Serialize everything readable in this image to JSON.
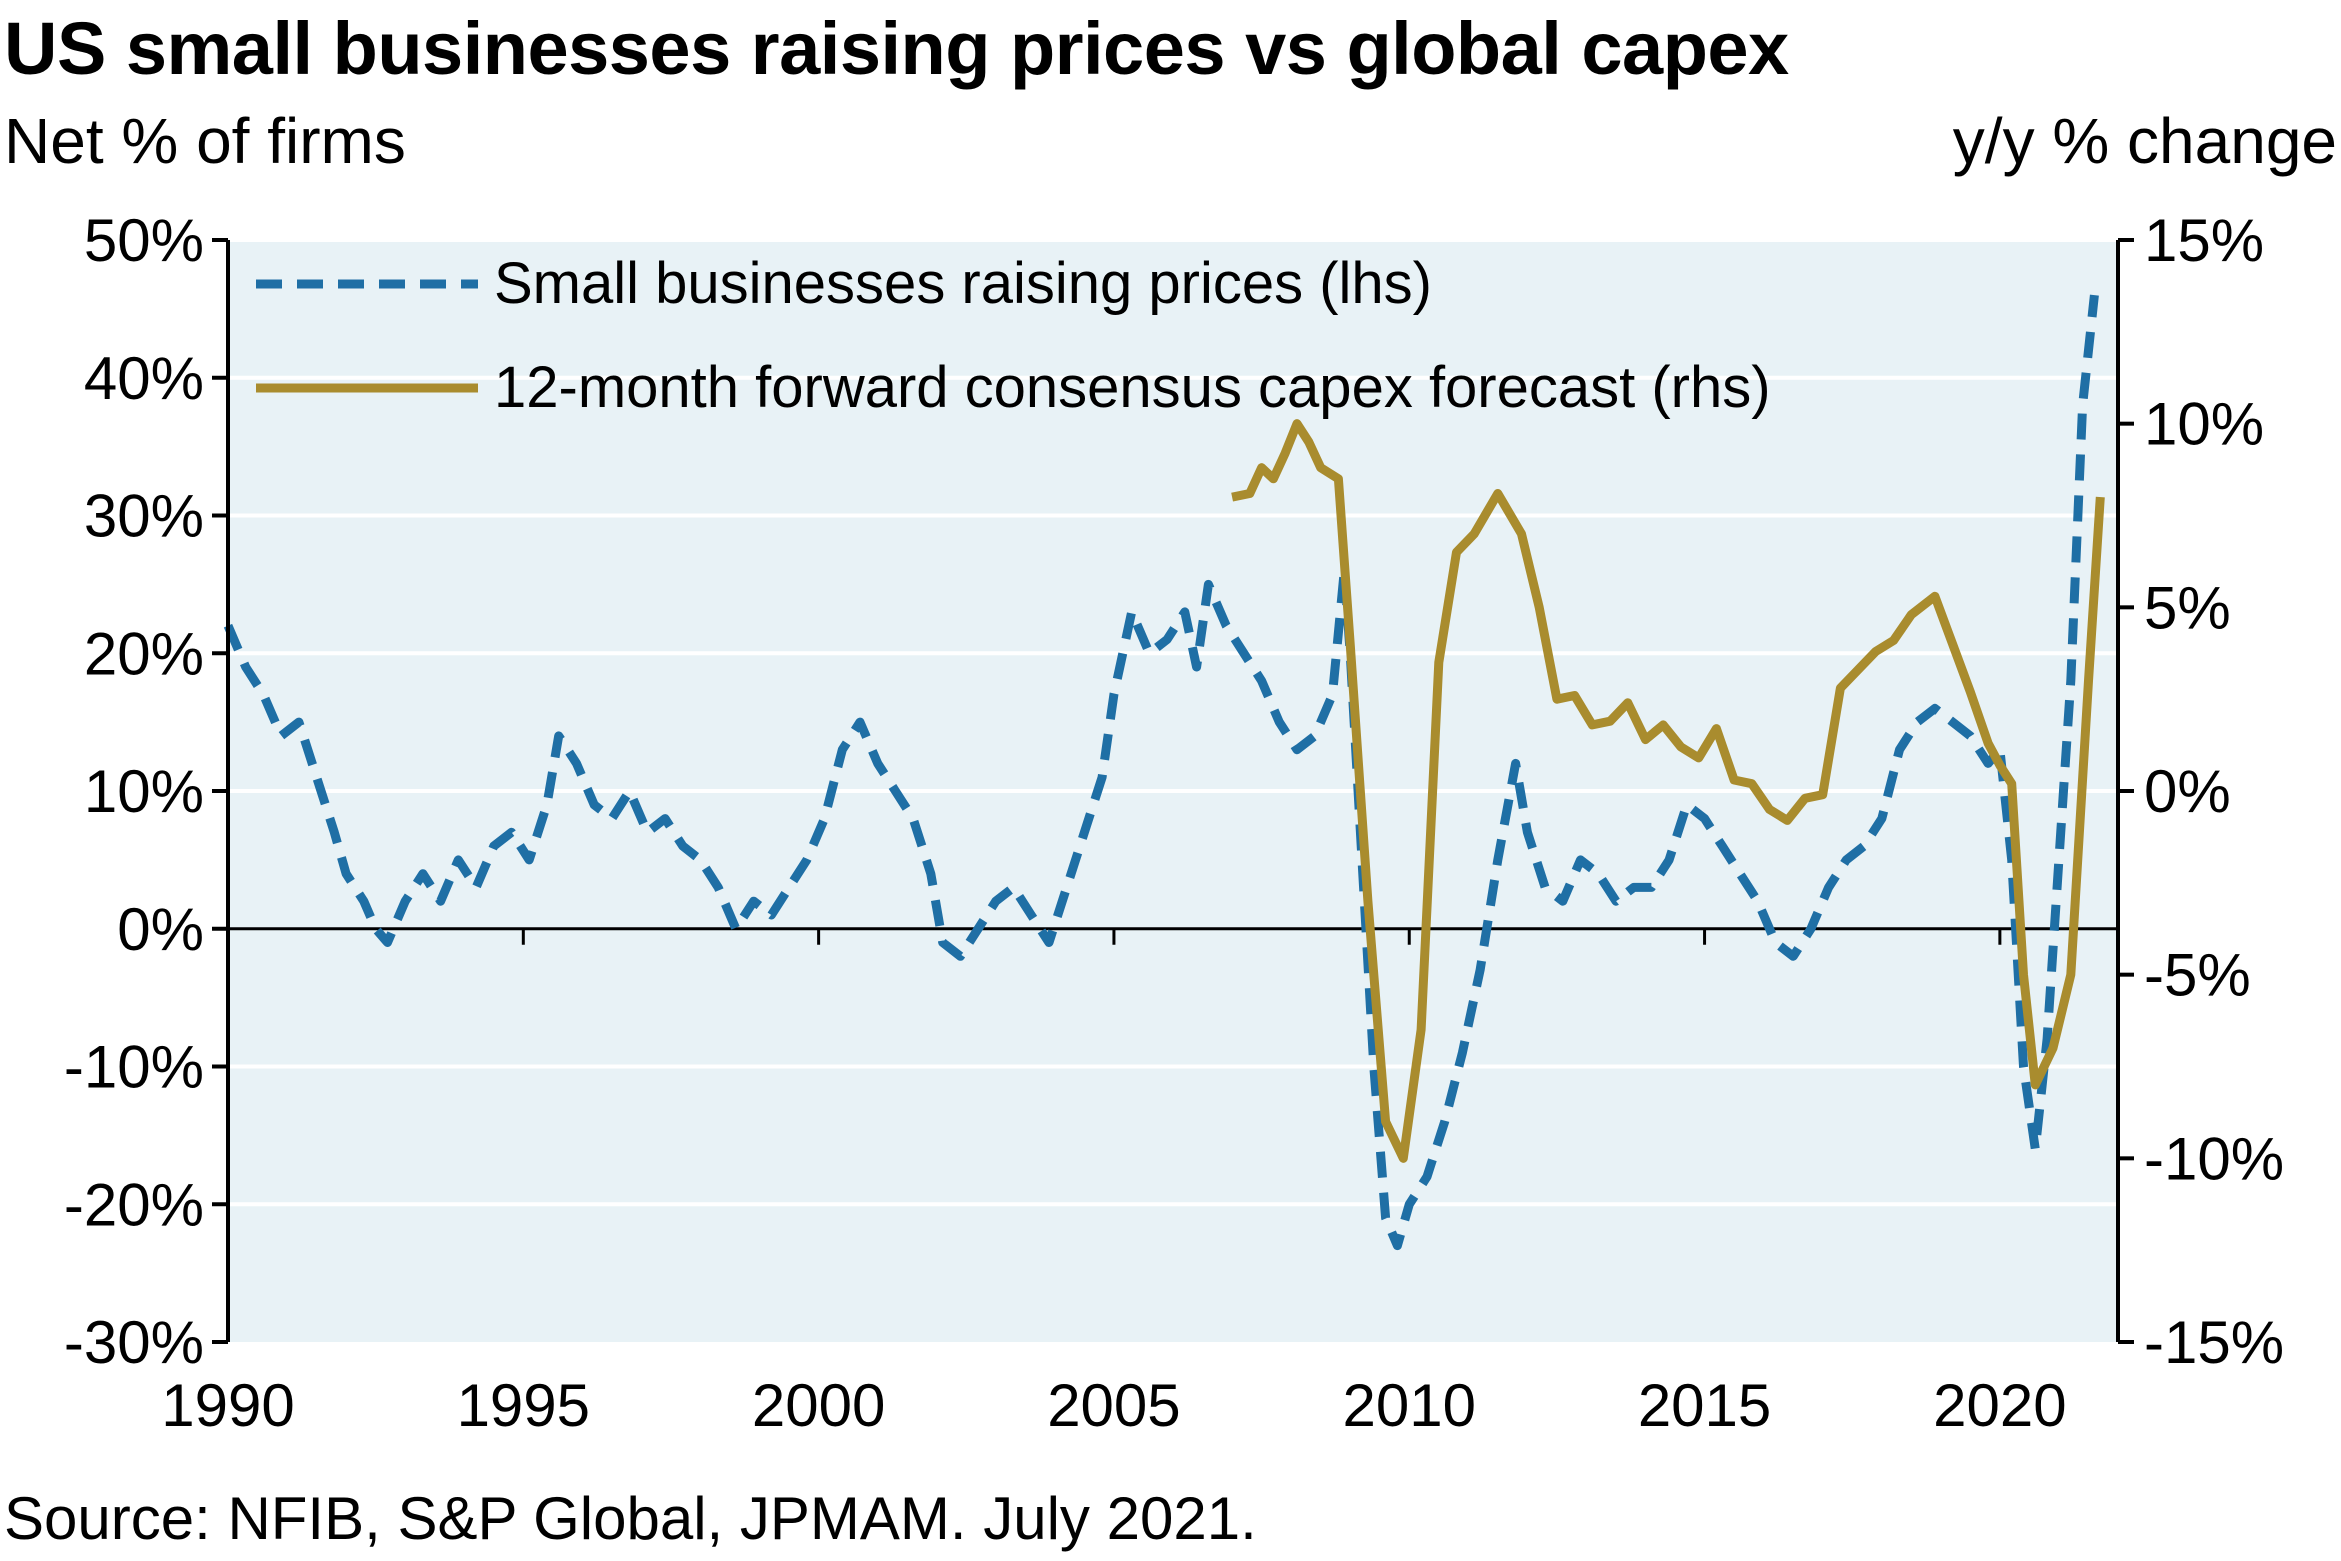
{
  "title": "US small businesses raising prices vs global capex",
  "lhs_unit": "Net % of firms",
  "rhs_unit": "y/y % change",
  "source": "Source: NFIB, S&P Global, JPMAM. July 2021.",
  "colors": {
    "plot_background": "#e8f2f6",
    "gridline": "#ffffff",
    "small_business": "#1f6fa5",
    "capex": "#a98c2e"
  },
  "chart_data": {
    "type": "line",
    "title": "US small businesses raising prices vs global capex",
    "x_range": [
      1990,
      2022
    ],
    "x_ticks": [
      1990,
      1995,
      2000,
      2005,
      2010,
      2015,
      2020
    ],
    "x_tick_labels": [
      "1990",
      "1995",
      "2000",
      "2005",
      "2010",
      "2015",
      "2020"
    ],
    "y_left": {
      "label": "Net % of firms",
      "range": [
        -30,
        50
      ],
      "ticks": [
        -30,
        -20,
        -10,
        0,
        10,
        20,
        30,
        40,
        50
      ],
      "tick_labels": [
        "-30%",
        "-20%",
        "-10%",
        "0%",
        "10%",
        "20%",
        "30%",
        "40%",
        "50%"
      ]
    },
    "y_right": {
      "label": "y/y % change",
      "range": [
        -15,
        15
      ],
      "ticks": [
        -15,
        -10,
        -5,
        0,
        5,
        10,
        15
      ],
      "tick_labels": [
        "-15%",
        "-10%",
        "-5%",
        "0%",
        "5%",
        "10%",
        "15%"
      ]
    },
    "grid": true,
    "legend_position": "top",
    "series": [
      {
        "name": "Small businesses raising prices (lhs)",
        "axis": "left",
        "style": "dashed",
        "points": [
          [
            1990.0,
            22
          ],
          [
            1990.3,
            19
          ],
          [
            1990.6,
            17
          ],
          [
            1990.9,
            14
          ],
          [
            1991.2,
            15
          ],
          [
            1991.5,
            11
          ],
          [
            1991.8,
            7
          ],
          [
            1992.0,
            4
          ],
          [
            1992.3,
            2
          ],
          [
            1992.5,
            0
          ],
          [
            1992.7,
            -1
          ],
          [
            1993.0,
            2
          ],
          [
            1993.3,
            4
          ],
          [
            1993.6,
            2
          ],
          [
            1993.9,
            5
          ],
          [
            1994.2,
            3
          ],
          [
            1994.5,
            6
          ],
          [
            1994.8,
            7
          ],
          [
            1995.1,
            5
          ],
          [
            1995.4,
            9
          ],
          [
            1995.6,
            14
          ],
          [
            1995.9,
            12
          ],
          [
            1996.2,
            9
          ],
          [
            1996.5,
            8
          ],
          [
            1996.8,
            10
          ],
          [
            1997.1,
            7
          ],
          [
            1997.4,
            8
          ],
          [
            1997.7,
            6
          ],
          [
            1998.0,
            5
          ],
          [
            1998.3,
            3
          ],
          [
            1998.6,
            0
          ],
          [
            1998.9,
            2
          ],
          [
            1999.2,
            1
          ],
          [
            1999.5,
            3
          ],
          [
            1999.8,
            5
          ],
          [
            2000.1,
            8
          ],
          [
            2000.4,
            13
          ],
          [
            2000.7,
            15
          ],
          [
            2001.0,
            12
          ],
          [
            2001.3,
            10
          ],
          [
            2001.6,
            8
          ],
          [
            2001.9,
            4
          ],
          [
            2002.1,
            -1
          ],
          [
            2002.4,
            -2
          ],
          [
            2002.7,
            0
          ],
          [
            2003.0,
            2
          ],
          [
            2003.3,
            3
          ],
          [
            2003.6,
            1
          ],
          [
            2003.9,
            -1
          ],
          [
            2004.2,
            3
          ],
          [
            2004.5,
            7
          ],
          [
            2004.8,
            11
          ],
          [
            2005.0,
            17
          ],
          [
            2005.3,
            23
          ],
          [
            2005.6,
            20
          ],
          [
            2005.9,
            21
          ],
          [
            2006.2,
            23
          ],
          [
            2006.4,
            19
          ],
          [
            2006.6,
            25
          ],
          [
            2006.9,
            22
          ],
          [
            2007.2,
            20
          ],
          [
            2007.5,
            18
          ],
          [
            2007.8,
            15
          ],
          [
            2008.1,
            13
          ],
          [
            2008.4,
            14
          ],
          [
            2008.7,
            17
          ],
          [
            2008.9,
            26
          ],
          [
            2009.0,
            20
          ],
          [
            2009.2,
            5
          ],
          [
            2009.4,
            -10
          ],
          [
            2009.6,
            -21
          ],
          [
            2009.8,
            -23
          ],
          [
            2010.0,
            -20
          ],
          [
            2010.3,
            -18
          ],
          [
            2010.6,
            -14
          ],
          [
            2010.9,
            -9
          ],
          [
            2011.2,
            -3
          ],
          [
            2011.5,
            5
          ],
          [
            2011.8,
            12
          ],
          [
            2012.0,
            7
          ],
          [
            2012.3,
            3
          ],
          [
            2012.6,
            2
          ],
          [
            2012.9,
            5
          ],
          [
            2013.2,
            4
          ],
          [
            2013.5,
            2
          ],
          [
            2013.8,
            3
          ],
          [
            2014.1,
            3
          ],
          [
            2014.4,
            5
          ],
          [
            2014.7,
            9
          ],
          [
            2015.0,
            8
          ],
          [
            2015.3,
            6
          ],
          [
            2015.6,
            4
          ],
          [
            2015.9,
            2
          ],
          [
            2016.2,
            -1
          ],
          [
            2016.5,
            -2
          ],
          [
            2016.8,
            0
          ],
          [
            2017.1,
            3
          ],
          [
            2017.4,
            5
          ],
          [
            2017.7,
            6
          ],
          [
            2018.0,
            8
          ],
          [
            2018.3,
            13
          ],
          [
            2018.6,
            15
          ],
          [
            2018.9,
            16
          ],
          [
            2019.2,
            15
          ],
          [
            2019.5,
            14
          ],
          [
            2019.8,
            12
          ],
          [
            2020.0,
            13
          ],
          [
            2020.2,
            5
          ],
          [
            2020.4,
            -10
          ],
          [
            2020.6,
            -16
          ],
          [
            2020.8,
            -8
          ],
          [
            2021.0,
            5
          ],
          [
            2021.2,
            18
          ],
          [
            2021.4,
            38
          ],
          [
            2021.6,
            46
          ]
        ]
      },
      {
        "name": "12-month forward consensus capex forecast (rhs)",
        "axis": "right",
        "style": "solid",
        "points": [
          [
            2007.0,
            8.0
          ],
          [
            2007.3,
            8.1
          ],
          [
            2007.5,
            8.8
          ],
          [
            2007.7,
            8.5
          ],
          [
            2007.9,
            9.2
          ],
          [
            2008.1,
            10.0
          ],
          [
            2008.3,
            9.5
          ],
          [
            2008.5,
            8.8
          ],
          [
            2008.8,
            8.5
          ],
          [
            2009.0,
            4.0
          ],
          [
            2009.3,
            -3.0
          ],
          [
            2009.6,
            -9.0
          ],
          [
            2009.9,
            -10.0
          ],
          [
            2010.2,
            -6.5
          ],
          [
            2010.5,
            3.5
          ],
          [
            2010.8,
            6.5
          ],
          [
            2011.1,
            7.0
          ],
          [
            2011.5,
            8.1
          ],
          [
            2011.9,
            7.0
          ],
          [
            2012.2,
            5.0
          ],
          [
            2012.5,
            2.5
          ],
          [
            2012.8,
            2.6
          ],
          [
            2013.1,
            1.8
          ],
          [
            2013.4,
            1.9
          ],
          [
            2013.7,
            2.4
          ],
          [
            2014.0,
            1.4
          ],
          [
            2014.3,
            1.8
          ],
          [
            2014.6,
            1.2
          ],
          [
            2014.9,
            0.9
          ],
          [
            2015.2,
            1.7
          ],
          [
            2015.5,
            0.3
          ],
          [
            2015.8,
            0.2
          ],
          [
            2016.1,
            -0.5
          ],
          [
            2016.4,
            -0.8
          ],
          [
            2016.7,
            -0.2
          ],
          [
            2017.0,
            -0.1
          ],
          [
            2017.3,
            2.8
          ],
          [
            2017.6,
            3.3
          ],
          [
            2017.9,
            3.8
          ],
          [
            2018.2,
            4.1
          ],
          [
            2018.5,
            4.8
          ],
          [
            2018.9,
            5.3
          ],
          [
            2019.2,
            4.0
          ],
          [
            2019.5,
            2.7
          ],
          [
            2019.8,
            1.3
          ],
          [
            2020.0,
            0.7
          ],
          [
            2020.2,
            0.2
          ],
          [
            2020.4,
            -5.0
          ],
          [
            2020.6,
            -8.0
          ],
          [
            2020.9,
            -7.0
          ],
          [
            2021.2,
            -5.0
          ],
          [
            2021.5,
            3.0
          ],
          [
            2021.7,
            8.0
          ]
        ]
      }
    ]
  }
}
